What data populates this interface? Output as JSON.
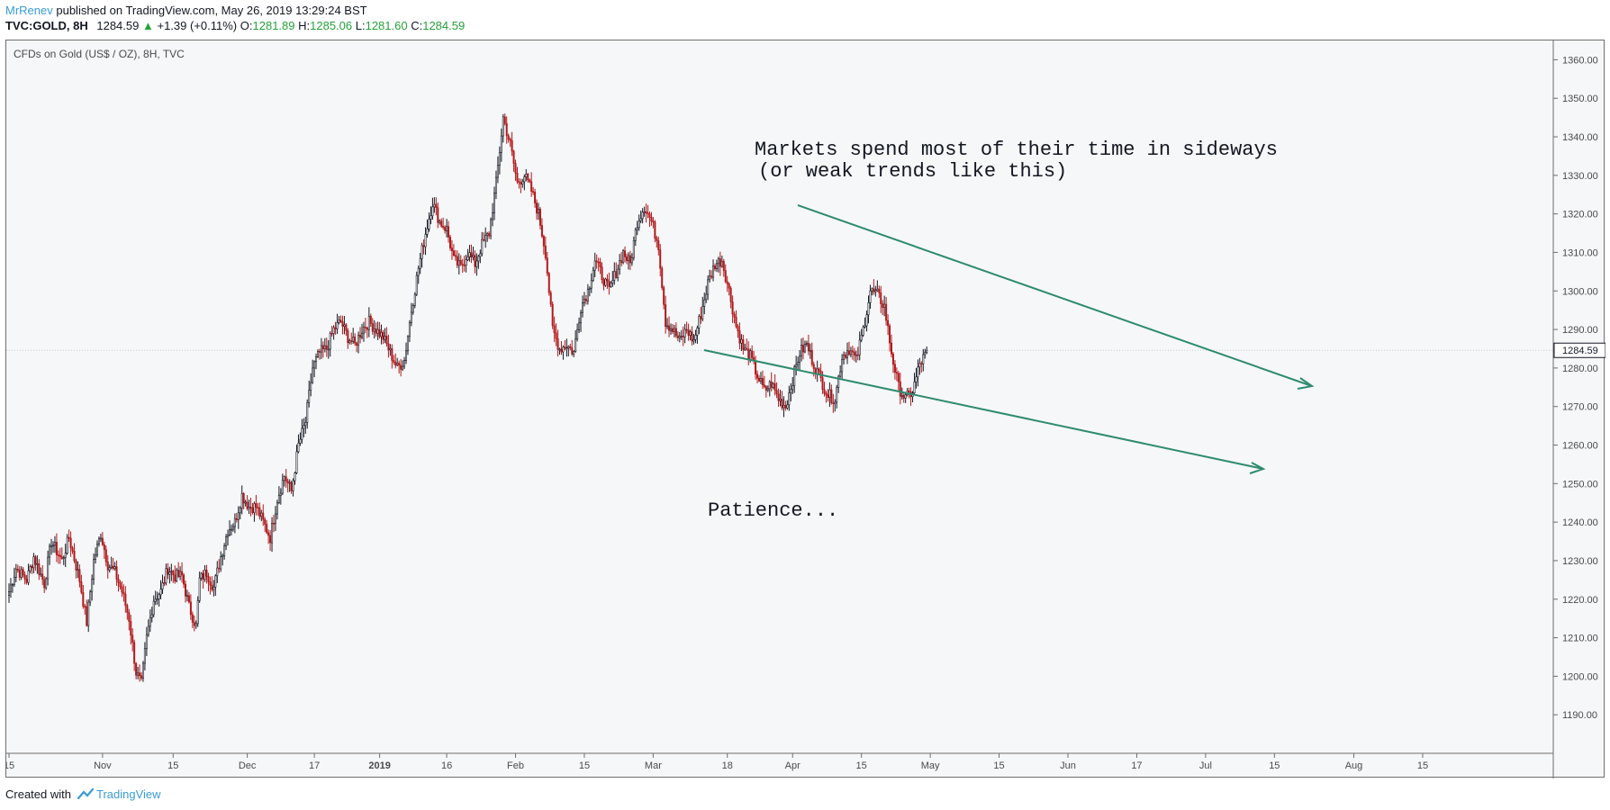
{
  "header": {
    "author": "MrRenev",
    "published_text": " published on TradingView.com, May 26, 2019 13:29:24 BST",
    "symbol": "TVC:GOLD, 8H",
    "last": "1284.59",
    "change_arrow": "▲",
    "change": "+1.39 (+0.11%)",
    "o_label": "O:",
    "o": "1281.89",
    "h_label": "H:",
    "h": "1285.06",
    "l_label": "L:",
    "l": "1281.60",
    "c_label": "C:",
    "c": "1284.59"
  },
  "footer": {
    "created_with": "Created with",
    "brand": "TradingView"
  },
  "colors": {
    "up": "#131722",
    "down": "#b2181b",
    "trendline": "#2e8b6e",
    "price_tag": "#131722"
  },
  "chart_data": {
    "type": "candlestick",
    "title": "CFDs on Gold (US$ / OZ), 8H, TVC",
    "ylim": [
      1180,
      1365
    ],
    "y_ticks": [
      "1190.00",
      "1200.00",
      "1210.00",
      "1220.00",
      "1230.00",
      "1240.00",
      "1250.00",
      "1260.00",
      "1270.00",
      "1280.00",
      "1290.00",
      "1300.00",
      "1310.00",
      "1320.00",
      "1330.00",
      "1340.00",
      "1350.00",
      "1360.00"
    ],
    "current_price_label": "1284.59",
    "current_price": 1284.59,
    "x_ticks": [
      {
        "label": "15",
        "i": 0
      },
      {
        "label": "Nov",
        "i": 53
      },
      {
        "label": "15",
        "i": 93
      },
      {
        "label": "Dec",
        "i": 135
      },
      {
        "label": "17",
        "i": 173
      },
      {
        "label": "2019",
        "i": 210
      },
      {
        "label": "16",
        "i": 248
      },
      {
        "label": "Feb",
        "i": 287
      },
      {
        "label": "15",
        "i": 326
      },
      {
        "label": "Mar",
        "i": 365
      },
      {
        "label": "18",
        "i": 407
      },
      {
        "label": "Apr",
        "i": 444
      },
      {
        "label": "15",
        "i": 483
      },
      {
        "label": "May",
        "i": 522
      },
      {
        "label": "15",
        "i": 561
      },
      {
        "label": "Jun",
        "i": 600
      },
      {
        "label": "17",
        "i": 639
      },
      {
        "label": "Jul",
        "i": 678
      },
      {
        "label": "15",
        "i": 717
      },
      {
        "label": "Aug",
        "i": 762
      },
      {
        "label": "15",
        "i": 801
      }
    ],
    "series_anchors": [
      [
        0,
        1222
      ],
      [
        4,
        1228
      ],
      [
        10,
        1225
      ],
      [
        14,
        1231
      ],
      [
        20,
        1224
      ],
      [
        24,
        1235
      ],
      [
        30,
        1230
      ],
      [
        34,
        1236
      ],
      [
        40,
        1225
      ],
      [
        44,
        1214
      ],
      [
        48,
        1230
      ],
      [
        52,
        1237
      ],
      [
        56,
        1229
      ],
      [
        60,
        1227
      ],
      [
        64,
        1222
      ],
      [
        68,
        1215
      ],
      [
        72,
        1201
      ],
      [
        75,
        1198
      ],
      [
        78,
        1210
      ],
      [
        82,
        1220
      ],
      [
        86,
        1222
      ],
      [
        90,
        1228
      ],
      [
        94,
        1226
      ],
      [
        98,
        1226
      ],
      [
        102,
        1218
      ],
      [
        106,
        1213
      ],
      [
        108,
        1225
      ],
      [
        112,
        1227
      ],
      [
        116,
        1223
      ],
      [
        120,
        1231
      ],
      [
        124,
        1238
      ],
      [
        128,
        1240
      ],
      [
        132,
        1247
      ],
      [
        136,
        1244
      ],
      [
        140,
        1244
      ],
      [
        144,
        1240
      ],
      [
        148,
        1236
      ],
      [
        152,
        1246
      ],
      [
        156,
        1252
      ],
      [
        160,
        1248
      ],
      [
        164,
        1260
      ],
      [
        168,
        1266
      ],
      [
        172,
        1280
      ],
      [
        176,
        1284
      ],
      [
        180,
        1285
      ],
      [
        184,
        1290
      ],
      [
        188,
        1292
      ],
      [
        192,
        1288
      ],
      [
        196,
        1286
      ],
      [
        200,
        1290
      ],
      [
        204,
        1292
      ],
      [
        208,
        1290
      ],
      [
        212,
        1288
      ],
      [
        216,
        1284
      ],
      [
        220,
        1280
      ],
      [
        224,
        1282
      ],
      [
        228,
        1295
      ],
      [
        232,
        1306
      ],
      [
        236,
        1315
      ],
      [
        240,
        1323
      ],
      [
        244,
        1318
      ],
      [
        248,
        1316
      ],
      [
        252,
        1308
      ],
      [
        256,
        1306
      ],
      [
        260,
        1310
      ],
      [
        264,
        1307
      ],
      [
        268,
        1312
      ],
      [
        272,
        1315
      ],
      [
        276,
        1328
      ],
      [
        280,
        1345
      ],
      [
        284,
        1338
      ],
      [
        288,
        1328
      ],
      [
        292,
        1330
      ],
      [
        296,
        1326
      ],
      [
        300,
        1320
      ],
      [
        304,
        1310
      ],
      [
        308,
        1290
      ],
      [
        312,
        1285
      ],
      [
        316,
        1286
      ],
      [
        320,
        1284
      ],
      [
        324,
        1296
      ],
      [
        328,
        1300
      ],
      [
        332,
        1308
      ],
      [
        336,
        1304
      ],
      [
        340,
        1300
      ],
      [
        344,
        1305
      ],
      [
        348,
        1310
      ],
      [
        352,
        1307
      ],
      [
        356,
        1318
      ],
      [
        360,
        1322
      ],
      [
        364,
        1318
      ],
      [
        368,
        1312
      ],
      [
        372,
        1292
      ],
      [
        376,
        1290
      ],
      [
        380,
        1287
      ],
      [
        384,
        1290
      ],
      [
        388,
        1287
      ],
      [
        392,
        1294
      ],
      [
        396,
        1302
      ],
      [
        400,
        1307
      ],
      [
        404,
        1308
      ],
      [
        408,
        1300
      ],
      [
        412,
        1291
      ],
      [
        416,
        1285
      ],
      [
        420,
        1283
      ],
      [
        424,
        1278
      ],
      [
        428,
        1274
      ],
      [
        432,
        1276
      ],
      [
        436,
        1272
      ],
      [
        440,
        1270
      ],
      [
        444,
        1277
      ],
      [
        448,
        1284
      ],
      [
        452,
        1286
      ],
      [
        456,
        1281
      ],
      [
        460,
        1277
      ],
      [
        464,
        1273
      ],
      [
        468,
        1272
      ],
      [
        472,
        1283
      ],
      [
        476,
        1285
      ],
      [
        480,
        1282
      ],
      [
        484,
        1290
      ],
      [
        488,
        1300
      ],
      [
        492,
        1299
      ],
      [
        496,
        1296
      ],
      [
        500,
        1284
      ],
      [
        504,
        1275
      ],
      [
        508,
        1272
      ],
      [
        512,
        1274
      ],
      [
        516,
        1281
      ],
      [
        520,
        1284
      ]
    ]
  },
  "annotations": {
    "note1_line1": "Markets spend most of their time in sideways",
    "note1_line2": "(or weak trends like this)",
    "note2": "Patience..."
  }
}
